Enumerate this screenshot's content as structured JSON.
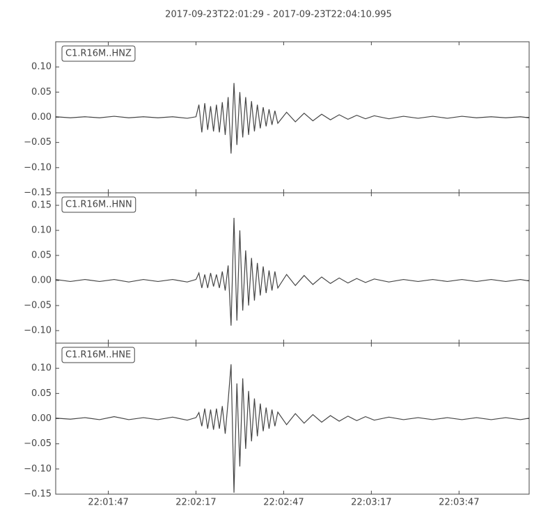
{
  "title": "2017-09-23T22:01:29  -  2017-09-23T22:04:10.995",
  "chart_data": [
    {
      "type": "line",
      "title": "C1.R16M..HNZ",
      "color": "#444444",
      "x": [
        "22:01:29",
        "22:01:34",
        "22:01:39",
        "22:01:44",
        "22:01:49",
        "22:01:54",
        "22:01:59",
        "22:02:04",
        "22:02:09",
        "22:02:14",
        "22:02:17",
        "22:02:18",
        "22:02:19",
        "22:02:20",
        "22:02:21",
        "22:02:22",
        "22:02:23",
        "22:02:24",
        "22:02:25",
        "22:02:26",
        "22:02:27",
        "22:02:28",
        "22:02:29",
        "22:02:30",
        "22:02:31",
        "22:02:32",
        "22:02:33",
        "22:02:34",
        "22:02:35",
        "22:02:36",
        "22:02:37",
        "22:02:38",
        "22:02:39",
        "22:02:40",
        "22:02:41",
        "22:02:42",
        "22:02:43",
        "22:02:44",
        "22:02:45",
        "22:02:48",
        "22:02:51",
        "22:02:54",
        "22:02:57",
        "22:03:00",
        "22:03:03",
        "22:03:06",
        "22:03:09",
        "22:03:12",
        "22:03:15",
        "22:03:18",
        "22:03:23",
        "22:03:28",
        "22:03:33",
        "22:03:38",
        "22:03:43",
        "22:03:48",
        "22:03:53",
        "22:03:58",
        "22:04:03",
        "22:04:08",
        "22:04:10.995"
      ],
      "values": [
        0.001,
        -0.001,
        0.001,
        -0.001,
        0.002,
        -0.001,
        0.001,
        -0.001,
        0.001,
        -0.002,
        0.001,
        0.025,
        -0.03,
        0.028,
        -0.025,
        0.022,
        -0.028,
        0.025,
        -0.03,
        0.03,
        -0.035,
        0.04,
        -0.072,
        0.068,
        -0.055,
        0.05,
        -0.04,
        0.04,
        -0.035,
        0.032,
        -0.028,
        0.025,
        -0.022,
        0.02,
        -0.018,
        0.016,
        -0.015,
        0.013,
        -0.012,
        0.01,
        -0.009,
        0.008,
        -0.007,
        0.006,
        -0.005,
        0.005,
        -0.004,
        0.004,
        -0.003,
        0.003,
        -0.003,
        0.002,
        -0.002,
        0.002,
        -0.002,
        0.002,
        -0.001,
        0.001,
        -0.001,
        0.001,
        -0.001
      ],
      "xlim": [
        "22:01:29",
        "22:04:10.995"
      ],
      "xticks": [
        "22:01:47",
        "22:02:17",
        "22:02:47",
        "22:03:17",
        "22:03:47"
      ],
      "ylim": [
        -0.15,
        0.15
      ],
      "yticks": [
        {
          "value": -0.15,
          "label": "−0.15"
        },
        {
          "value": -0.1,
          "label": "−0.10"
        },
        {
          "value": -0.05,
          "label": "−0.05"
        },
        {
          "value": 0,
          "label": "0.00"
        },
        {
          "value": 0.05,
          "label": "0.05"
        },
        {
          "value": 0.1,
          "label": "0.10"
        }
      ]
    },
    {
      "type": "line",
      "title": "C1.R16M..HNN",
      "color": "#444444",
      "x": [
        "22:01:29",
        "22:01:34",
        "22:01:39",
        "22:01:44",
        "22:01:49",
        "22:01:54",
        "22:01:59",
        "22:02:04",
        "22:02:09",
        "22:02:14",
        "22:02:17",
        "22:02:18",
        "22:02:19",
        "22:02:20",
        "22:02:21",
        "22:02:22",
        "22:02:23",
        "22:02:24",
        "22:02:25",
        "22:02:26",
        "22:02:27",
        "22:02:28",
        "22:02:29",
        "22:02:30",
        "22:02:31",
        "22:02:32",
        "22:02:33",
        "22:02:34",
        "22:02:35",
        "22:02:36",
        "22:02:37",
        "22:02:38",
        "22:02:39",
        "22:02:40",
        "22:02:41",
        "22:02:42",
        "22:02:43",
        "22:02:44",
        "22:02:45",
        "22:02:48",
        "22:02:51",
        "22:02:54",
        "22:02:57",
        "22:03:00",
        "22:03:03",
        "22:03:06",
        "22:03:09",
        "22:03:12",
        "22:03:15",
        "22:03:18",
        "22:03:23",
        "22:03:28",
        "22:03:33",
        "22:03:38",
        "22:03:43",
        "22:03:48",
        "22:03:53",
        "22:03:58",
        "22:04:03",
        "22:04:08",
        "22:04:10.995"
      ],
      "values": [
        0.002,
        -0.002,
        0.002,
        -0.002,
        0.002,
        -0.003,
        0.002,
        -0.002,
        0.002,
        -0.003,
        0.002,
        0.015,
        -0.015,
        0.012,
        -0.015,
        0.015,
        -0.012,
        0.012,
        -0.015,
        0.018,
        -0.02,
        0.03,
        -0.09,
        0.125,
        -0.08,
        0.1,
        -0.06,
        0.06,
        -0.05,
        0.045,
        -0.04,
        0.035,
        -0.03,
        0.028,
        -0.025,
        0.02,
        -0.02,
        0.018,
        -0.015,
        0.012,
        -0.01,
        0.01,
        -0.008,
        0.007,
        -0.006,
        0.005,
        -0.005,
        0.004,
        -0.004,
        0.003,
        -0.003,
        0.002,
        -0.002,
        0.002,
        -0.002,
        0.002,
        -0.002,
        0.002,
        -0.002,
        0.002,
        -0.001
      ],
      "xlim": [
        "22:01:29",
        "22:04:10.995"
      ],
      "xticks": [
        "22:01:47",
        "22:02:17",
        "22:02:47",
        "22:03:17",
        "22:03:47"
      ],
      "ylim": [
        -0.125,
        0.175
      ],
      "yticks": [
        {
          "value": -0.1,
          "label": "−0.10"
        },
        {
          "value": -0.05,
          "label": "−0.05"
        },
        {
          "value": 0,
          "label": "0.00"
        },
        {
          "value": 0.05,
          "label": "0.05"
        },
        {
          "value": 0.1,
          "label": "0.10"
        },
        {
          "value": 0.15,
          "label": "0.15"
        }
      ]
    },
    {
      "type": "line",
      "title": "C1.R16M..HNE",
      "color": "#444444",
      "x": [
        "22:01:29",
        "22:01:34",
        "22:01:39",
        "22:01:44",
        "22:01:49",
        "22:01:54",
        "22:01:59",
        "22:02:04",
        "22:02:09",
        "22:02:14",
        "22:02:17",
        "22:02:18",
        "22:02:19",
        "22:02:20",
        "22:02:21",
        "22:02:22",
        "22:02:23",
        "22:02:24",
        "22:02:25",
        "22:02:26",
        "22:02:27",
        "22:02:28",
        "22:02:29",
        "22:02:30",
        "22:02:31",
        "22:02:32",
        "22:02:33",
        "22:02:34",
        "22:02:35",
        "22:02:36",
        "22:02:37",
        "22:02:38",
        "22:02:39",
        "22:02:40",
        "22:02:41",
        "22:02:42",
        "22:02:43",
        "22:02:44",
        "22:02:45",
        "22:02:48",
        "22:02:51",
        "22:02:54",
        "22:02:57",
        "22:03:00",
        "22:03:03",
        "22:03:06",
        "22:03:09",
        "22:03:12",
        "22:03:15",
        "22:03:18",
        "22:03:23",
        "22:03:28",
        "22:03:33",
        "22:03:38",
        "22:03:43",
        "22:03:48",
        "22:03:53",
        "22:03:58",
        "22:04:03",
        "22:04:08",
        "22:04:10.995"
      ],
      "values": [
        0.001,
        -0.001,
        0.002,
        -0.002,
        0.004,
        -0.002,
        0.002,
        -0.002,
        0.003,
        -0.003,
        0.002,
        0.012,
        -0.015,
        0.02,
        -0.02,
        0.018,
        -0.022,
        0.02,
        -0.02,
        0.025,
        -0.03,
        0.035,
        0.108,
        -0.147,
        0.07,
        -0.095,
        0.08,
        -0.06,
        0.055,
        -0.045,
        0.04,
        -0.035,
        0.03,
        -0.025,
        0.022,
        -0.02,
        0.018,
        -0.015,
        0.013,
        -0.012,
        0.01,
        -0.009,
        0.008,
        -0.007,
        0.006,
        -0.005,
        0.005,
        -0.004,
        0.004,
        -0.003,
        0.003,
        -0.002,
        0.002,
        -0.002,
        0.002,
        -0.002,
        0.002,
        -0.002,
        0.002,
        -0.002,
        0.001
      ],
      "xlim": [
        "22:01:29",
        "22:04:10.995"
      ],
      "xticks": [
        "22:01:47",
        "22:02:17",
        "22:02:47",
        "22:03:17",
        "22:03:47"
      ],
      "ylim": [
        -0.15,
        0.15
      ],
      "yticks": [
        {
          "value": -0.15,
          "label": "−0.15"
        },
        {
          "value": -0.1,
          "label": "−0.10"
        },
        {
          "value": -0.05,
          "label": "−0.05"
        },
        {
          "value": 0,
          "label": "0.00"
        },
        {
          "value": 0.05,
          "label": "0.05"
        },
        {
          "value": 0.1,
          "label": "0.10"
        }
      ]
    }
  ]
}
